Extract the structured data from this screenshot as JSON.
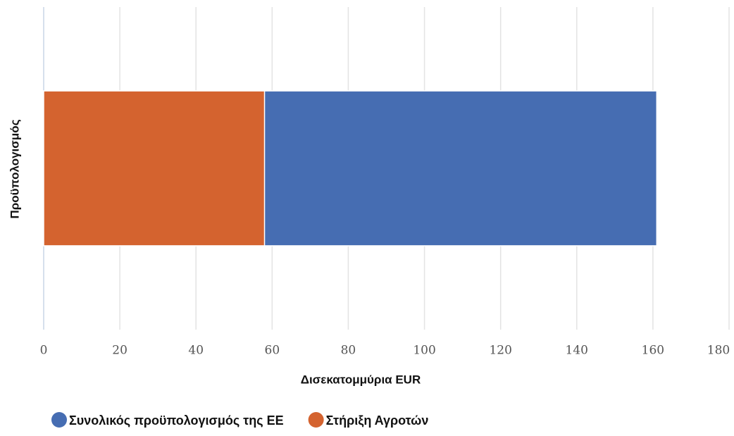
{
  "chart_data": {
    "type": "bar",
    "orientation": "horizontal",
    "mode": "overlay",
    "categories": [
      null
    ],
    "x_label": "Δισεκατομμύρια EUR",
    "y_label": "Προϋπολογισμός",
    "series": [
      {
        "name": "Συνολικός προϋπολογισμός της ΕΕ",
        "color": "#466db2",
        "values": [
          161
        ]
      },
      {
        "name": "Στήριξη Αγροτών",
        "color": "#d4632f",
        "values": [
          58
        ]
      }
    ],
    "xlim": [
      0,
      180
    ],
    "xticks": [
      0,
      20,
      40,
      60,
      80,
      100,
      120,
      140,
      160,
      180
    ],
    "grid": true,
    "legend": "bottom"
  }
}
